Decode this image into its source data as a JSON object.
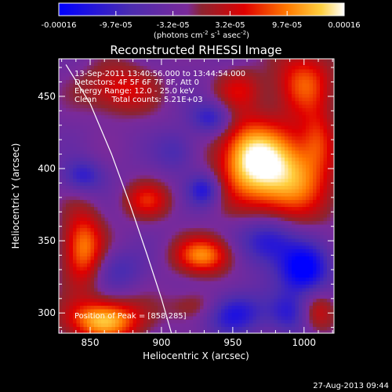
{
  "colorbar": {
    "tick_labels": [
      "-0.00016",
      "-9.7e-05",
      "-3.2e-05",
      "3.2e-05",
      "9.7e-05",
      "0.00016"
    ],
    "min": -0.00016,
    "max": 0.00016,
    "units_main": "(photons cm",
    "units_sup1": "-2",
    "units_mid1": " s",
    "units_sup2": "-1",
    "units_mid2": " asec",
    "units_sup3": "-2",
    "units_end": ")"
  },
  "chart_data": {
    "type": "heatmap",
    "title": "Reconstructed RHESSI Image",
    "xlabel": "Heliocentric X (arcsec)",
    "ylabel": "Heliocentric Y (arcsec)",
    "xlim": [
      828,
      1021
    ],
    "ylim": [
      286,
      476
    ],
    "x_ticks": [
      850,
      900,
      950,
      1000
    ],
    "y_ticks": [
      300,
      350,
      400,
      450
    ],
    "annotations": [
      "13-Sep-2011 13:40:56.000 to 13:44:54.000",
      "Detectors: 4F 5F 6F 7F 8F, Att 0",
      "Energy Range: 12.0 - 25.0 keV",
      "Clean      Total counts: 5.21E+03"
    ],
    "peak_label": "Position of Peak = [858,285]",
    "peak": [
      858,
      285
    ],
    "limb": [
      [
        833,
        472
      ],
      [
        850,
        445
      ],
      [
        865,
        410
      ],
      [
        878,
        375
      ],
      [
        890,
        340
      ],
      [
        900,
        310
      ],
      [
        907,
        286
      ]
    ],
    "sources": [
      {
        "x": 985,
        "y": 395,
        "a": 1.0,
        "sx": 22,
        "sy": 22
      },
      {
        "x": 960,
        "y": 410,
        "a": 0.75,
        "sx": 15,
        "sy": 18
      },
      {
        "x": 930,
        "y": 340,
        "a": 0.8,
        "sx": 14,
        "sy": 9
      },
      {
        "x": 860,
        "y": 295,
        "a": 1.0,
        "sx": 18,
        "sy": 10
      },
      {
        "x": 845,
        "y": 345,
        "a": 0.8,
        "sx": 10,
        "sy": 18
      },
      {
        "x": 890,
        "y": 378,
        "a": 0.5,
        "sx": 12,
        "sy": 9
      },
      {
        "x": 1000,
        "y": 460,
        "a": 0.65,
        "sx": 14,
        "sy": 16
      },
      {
        "x": 870,
        "y": 455,
        "a": 0.5,
        "sx": 18,
        "sy": 12
      },
      {
        "x": 1010,
        "y": 420,
        "a": 0.4,
        "sx": 8,
        "sy": 14
      },
      {
        "x": 1010,
        "y": 300,
        "a": 0.4,
        "sx": 9,
        "sy": 10
      },
      {
        "x": 955,
        "y": 455,
        "a": 0.4,
        "sx": 12,
        "sy": 10
      },
      {
        "x": 925,
        "y": 305,
        "a": 0.35,
        "sx": 14,
        "sy": 8
      },
      {
        "x": 975,
        "y": 350,
        "a": -0.7,
        "sx": 14,
        "sy": 12
      },
      {
        "x": 1000,
        "y": 330,
        "a": -0.9,
        "sx": 12,
        "sy": 12
      },
      {
        "x": 950,
        "y": 300,
        "a": -0.7,
        "sx": 14,
        "sy": 10
      },
      {
        "x": 930,
        "y": 385,
        "a": -0.6,
        "sx": 8,
        "sy": 8
      },
      {
        "x": 935,
        "y": 435,
        "a": -0.55,
        "sx": 10,
        "sy": 8
      },
      {
        "x": 845,
        "y": 395,
        "a": -0.5,
        "sx": 10,
        "sy": 8
      },
      {
        "x": 990,
        "y": 300,
        "a": -0.5,
        "sx": 10,
        "sy": 10
      },
      {
        "x": 870,
        "y": 330,
        "a": -0.35,
        "sx": 12,
        "sy": 10
      },
      {
        "x": 910,
        "y": 412,
        "a": -0.35,
        "sx": 10,
        "sy": 10
      }
    ],
    "background_level": -0.18
  },
  "timestamp": "27-Aug-2013 09:44"
}
